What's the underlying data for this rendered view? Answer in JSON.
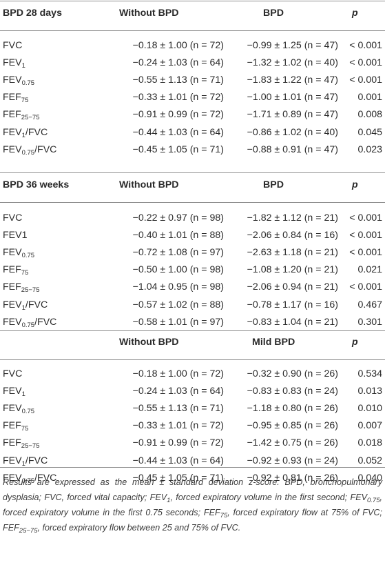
{
  "sections": [
    {
      "header": {
        "label": "BPD 28 days",
        "col1": "Without BPD",
        "col2": "BPD",
        "col3": "p"
      },
      "rows": [
        {
          "base": "FVC",
          "sub": "",
          "suffix": "",
          "v1": "−0.18 ± 1.00 (n = 72)",
          "v2": "−0.99 ± 1.25 (n = 47)",
          "p": "< 0.001"
        },
        {
          "base": "FEV",
          "sub": "1",
          "suffix": "",
          "v1": "−0.24 ± 1.03 (n = 64)",
          "v2": "−1.32 ± 1.02 (n = 40)",
          "p": "< 0.001"
        },
        {
          "base": "FEV",
          "sub": "0.75",
          "suffix": "",
          "v1": "−0.55 ± 1.13 (n = 71)",
          "v2": "−1.83 ± 1.22 (n = 47)",
          "p": "< 0.001"
        },
        {
          "base": "FEF",
          "sub": "75",
          "suffix": "",
          "v1": "−0.33 ± 1.01 (n = 72)",
          "v2": "−1.00 ± 1.01 (n = 47)",
          "p": "0.001"
        },
        {
          "base": "FEF",
          "sub": "25−75",
          "suffix": "",
          "v1": "−0.91 ± 0.99 (n = 72)",
          "v2": "−1.71 ± 0.89 (n = 47)",
          "p": "0.008"
        },
        {
          "base": "FEV",
          "sub": "1",
          "suffix": "/FVC",
          "v1": "−0.44 ± 1.03 (n = 64)",
          "v2": "−0.86 ± 1.02 (n = 40)",
          "p": "0.045"
        },
        {
          "base": "FEV",
          "sub": "0.75",
          "suffix": "/FVC",
          "v1": "−0.45 ± 1.05 (n = 71)",
          "v2": "−0.88 ± 0.91 (n = 47)",
          "p": "0.023"
        }
      ]
    },
    {
      "header": {
        "label": "BPD 36 weeks",
        "col1": "Without BPD",
        "col2": "BPD",
        "col3": "p"
      },
      "rows": [
        {
          "base": "FVC",
          "sub": "",
          "suffix": "",
          "v1": "−0.22 ± 0.97 (n = 98)",
          "v2": "−1.82 ± 1.12 (n = 21)",
          "p": "< 0.001"
        },
        {
          "base": "FEV1",
          "sub": "",
          "suffix": "",
          "v1": "−0.40 ± 1.01 (n = 88)",
          "v2": "−2.06 ± 0.84 (n = 16)",
          "p": "< 0.001"
        },
        {
          "base": "FEV",
          "sub": "0.75",
          "suffix": "",
          "v1": "−0.72 ± 1.08 (n = 97)",
          "v2": "−2.63 ± 1.18 (n = 21)",
          "p": "< 0.001"
        },
        {
          "base": "FEF",
          "sub": "75",
          "suffix": "",
          "v1": "−0.50 ± 1.00 (n = 98)",
          "v2": "−1.08 ± 1.20 (n = 21)",
          "p": "0.021"
        },
        {
          "base": "FEF",
          "sub": "25−75",
          "suffix": "",
          "v1": "−1.04 ± 0.95 (n = 98)",
          "v2": "−2.06 ± 0.94 (n = 21)",
          "p": "< 0.001"
        },
        {
          "base": "FEV",
          "sub": "1",
          "suffix": "/FVC",
          "v1": "−0.57 ± 1.02 (n = 88)",
          "v2": "−0.78 ± 1.17 (n = 16)",
          "p": "0.467"
        },
        {
          "base": "FEV",
          "sub": "0.75",
          "suffix": "/FVC",
          "v1": "−0.58 ± 1.01 (n = 97)",
          "v2": "−0.83 ± 1.04 (n = 21)",
          "p": "0.301"
        }
      ]
    },
    {
      "header": {
        "label": "",
        "col1": "Without BPD",
        "col2": "Mild BPD",
        "col3": "p"
      },
      "rows": [
        {
          "base": "FVC",
          "sub": "",
          "suffix": "",
          "v1": "−0.18 ± 1.00 (n = 72)",
          "v2": "−0.32 ± 0.90 (n = 26)",
          "p": "0.534"
        },
        {
          "base": "FEV",
          "sub": "1",
          "suffix": "",
          "v1": "−0.24 ± 1.03 (n = 64)",
          "v2": "−0.83 ± 0.83 (n = 24)",
          "p": "0.013"
        },
        {
          "base": "FEV",
          "sub": "0.75",
          "suffix": "",
          "v1": "−0.55 ± 1.13 (n = 71)",
          "v2": "−1.18 ± 0.80 (n = 26)",
          "p": "0.010"
        },
        {
          "base": "FEF",
          "sub": "75",
          "suffix": "",
          "v1": "−0.33 ± 1.01 (n = 72)",
          "v2": "−0.95 ± 0.85 (n = 26)",
          "p": "0.007"
        },
        {
          "base": "FEF",
          "sub": "25−75",
          "suffix": "",
          "v1": "−0.91 ± 0.99 (n = 72)",
          "v2": "−1.42 ± 0.75 (n = 26)",
          "p": "0.018"
        },
        {
          "base": "FEV",
          "sub": "1",
          "suffix": "/FVC",
          "v1": "−0.44 ± 1.03 (n = 64)",
          "v2": "−0.92 ± 0.93 (n = 24)",
          "p": "0.052"
        },
        {
          "base": "FEV",
          "sub": "0.75",
          "suffix": "/FVC",
          "v1": "−0.45 ± 1.05 (n = 71)",
          "v2": "−0.92 ± 0.81 (n = 26)",
          "p": "0.040"
        }
      ]
    }
  ],
  "footnote": [
    {
      "text": "Results are expressed as the mean ± standard deviation z-score. BPD, bronchopulmonary dysplasia; FVC, forced vital capacity; FEV"
    },
    {
      "sub": "1"
    },
    {
      "text": ", forced expiratory volume in the first second; FEV"
    },
    {
      "sub": "0.75"
    },
    {
      "text": ", forced expiratory volume in the first 0.75 seconds; FEF"
    },
    {
      "sub": "75"
    },
    {
      "text": ", forced expiratory flow at 75% of FVC; FEF"
    },
    {
      "sub": "25−75"
    },
    {
      "text": ", forced expiratory flow between 25 and 75% of FVC."
    }
  ]
}
